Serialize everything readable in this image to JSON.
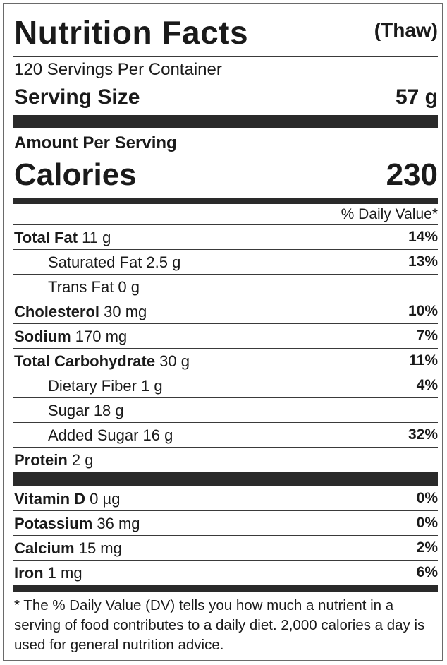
{
  "header": {
    "title": "Nutrition Facts",
    "subtitle": "(Thaw)"
  },
  "servings_per_container": "120 Servings Per Container",
  "serving_size": {
    "label": "Serving Size",
    "value": "57 g"
  },
  "amount_per_serving": "Amount Per Serving",
  "calories": {
    "label": "Calories",
    "value": "230"
  },
  "daily_value_header": "% Daily Value*",
  "nutrients": [
    {
      "name": "Total Fat",
      "amount": " 11 g",
      "dv": "14%"
    },
    {
      "name": "",
      "amount": "Saturated Fat 2.5 g",
      "dv": "13%"
    },
    {
      "name": "",
      "amount": "Trans Fat 0 g",
      "dv": ""
    },
    {
      "name": "Cholesterol",
      "amount": " 30 mg",
      "dv": "10%"
    },
    {
      "name": "Sodium",
      "amount": " 170 mg",
      "dv": "7%"
    },
    {
      "name": "Total Carbohydrate",
      "amount": " 30 g",
      "dv": "11%"
    },
    {
      "name": "",
      "amount": "Dietary Fiber 1 g",
      "dv": "4%"
    },
    {
      "name": "",
      "amount": "Sugar 18 g",
      "dv": ""
    },
    {
      "name": "",
      "amount": "Added Sugar 16 g",
      "dv": "32%"
    },
    {
      "name": "Protein",
      "amount": " 2 g",
      "dv": ""
    }
  ],
  "vitamins": [
    {
      "name": "Vitamin D",
      "amount": " 0 µg",
      "dv": "0%"
    },
    {
      "name": "Potassium",
      "amount": " 36 mg",
      "dv": "0%"
    },
    {
      "name": "Calcium",
      "amount": " 15 mg",
      "dv": "2%"
    },
    {
      "name": "Iron",
      "amount": " 1 mg",
      "dv": "6%"
    }
  ],
  "footnote": "* The % Daily Value (DV) tells you how much a nutrient in a serving of food contributes to a daily diet. 2,000 calories a day is used for general nutrition advice."
}
